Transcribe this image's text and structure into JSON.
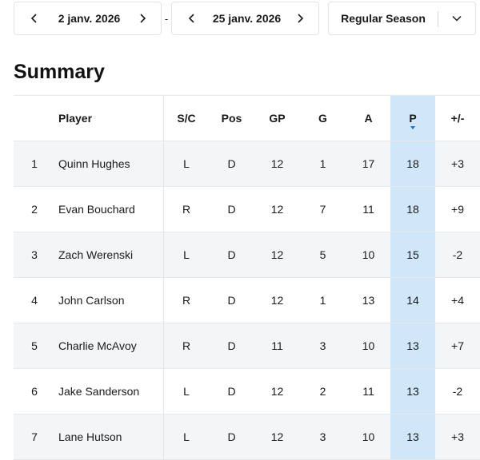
{
  "filters": {
    "start_date": "2 janv. 2026",
    "end_date": "25 janv. 2026",
    "separator": "-",
    "season": "Regular Season"
  },
  "page_title": "Summary",
  "colors": {
    "sorted_column_bg": "#cfe7f8",
    "sort_indicator": "#1b6fd1"
  },
  "table": {
    "columns": [
      "",
      "Player",
      "S/C",
      "Pos",
      "GP",
      "G",
      "A",
      "P",
      "+/-"
    ],
    "sorted_column": "P",
    "rows": [
      [
        "1",
        "Quinn Hughes",
        "L",
        "D",
        "12",
        "1",
        "17",
        "18",
        "+3"
      ],
      [
        "2",
        "Evan Bouchard",
        "R",
        "D",
        "12",
        "7",
        "11",
        "18",
        "+9"
      ],
      [
        "3",
        "Zach Werenski",
        "L",
        "D",
        "12",
        "5",
        "10",
        "15",
        "-2"
      ],
      [
        "4",
        "John Carlson",
        "R",
        "D",
        "12",
        "1",
        "13",
        "14",
        "+4"
      ],
      [
        "5",
        "Charlie McAvoy",
        "R",
        "D",
        "11",
        "3",
        "10",
        "13",
        "+7"
      ],
      [
        "6",
        "Jake Sanderson",
        "L",
        "D",
        "12",
        "2",
        "11",
        "13",
        "-2"
      ],
      [
        "7",
        "Lane Hutson",
        "L",
        "D",
        "12",
        "3",
        "10",
        "13",
        "+3"
      ]
    ]
  }
}
